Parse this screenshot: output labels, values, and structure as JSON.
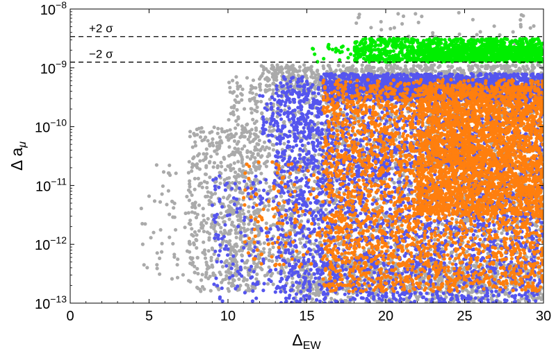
{
  "chart_data": {
    "type": "scatter",
    "title": "",
    "xlabel": {
      "main": "Δ",
      "sub": "EW"
    },
    "ylabel": {
      "main": "Δ a",
      "sub": "μ"
    },
    "xlim": [
      0,
      30
    ],
    "ylim": [
      1e-13,
      1e-08
    ],
    "yscale": "log",
    "x_ticks": [
      {
        "value": 0,
        "label": "0"
      },
      {
        "value": 5,
        "label": "5"
      },
      {
        "value": 10,
        "label": "10"
      },
      {
        "value": 15,
        "label": "15"
      },
      {
        "value": 20,
        "label": "20"
      },
      {
        "value": 25,
        "label": "25"
      },
      {
        "value": 30,
        "label": "30"
      }
    ],
    "y_ticks": [
      {
        "exp": -13,
        "base": "10",
        "sup": "−13"
      },
      {
        "exp": -12,
        "base": "10",
        "sup": "−12"
      },
      {
        "exp": -11,
        "base": "10",
        "sup": "−11"
      },
      {
        "exp": -10,
        "base": "10",
        "sup": "−10"
      },
      {
        "exp": -9,
        "base": "10",
        "sup": "−9"
      },
      {
        "exp": -8,
        "base": "10",
        "sup": "−8"
      }
    ],
    "reference_lines": [
      {
        "y": 3.4e-09,
        "label": "+2 σ",
        "style": "dashed",
        "color": "#000000"
      },
      {
        "y": 1.25e-09,
        "label": "−2 σ",
        "style": "dashed",
        "color": "#000000"
      }
    ],
    "grid": false,
    "legend": "none",
    "series": [
      {
        "color": "#aaaaaa",
        "regions": [
          {
            "x": [
              4.2,
              8
            ],
            "logy": [
              -12.6,
              -10.6
            ],
            "n": 60
          },
          {
            "x": [
              7.5,
              12
            ],
            "logy": [
              -12.8,
              -10.0
            ],
            "n": 500
          },
          {
            "x": [
              10,
              30
            ],
            "logy": [
              -12.8,
              -9.15
            ],
            "n": 2400
          },
          {
            "x": [
              12,
              30
            ],
            "logy": [
              -9.4,
              -8.95
            ],
            "n": 900
          },
          {
            "x": [
              14,
              30
            ],
            "logy": [
              -13.0,
              -12.3
            ],
            "n": 700
          },
          {
            "x": [
              18,
              30
            ],
            "logy": [
              -8.9,
              -8.05
            ],
            "n": 60
          }
        ]
      },
      {
        "color": "#5555ee",
        "regions": [
          {
            "x": [
              9,
              13
            ],
            "logy": [
              -13.0,
              -10.8
            ],
            "n": 140
          },
          {
            "x": [
              13,
              30
            ],
            "logy": [
              -13.0,
              -9.15
            ],
            "n": 3200
          },
          {
            "x": [
              16,
              30
            ],
            "logy": [
              -9.55,
              -9.1
            ],
            "n": 1500
          },
          {
            "x": [
              12,
              16
            ],
            "logy": [
              -10.3,
              -9.4
            ],
            "n": 120
          }
        ]
      },
      {
        "color": "#ff7f0e",
        "regions": [
          {
            "x": [
              11,
              16
            ],
            "logy": [
              -12.4,
              -10.6
            ],
            "n": 120
          },
          {
            "x": [
              16,
              30
            ],
            "logy": [
              -12.8,
              -9.2
            ],
            "n": 3000
          },
          {
            "x": [
              22,
              30
            ],
            "logy": [
              -11.5,
              -9.3
            ],
            "n": 2200
          }
        ]
      },
      {
        "color": "#00ee00",
        "regions": [
          {
            "x": [
              15.3,
              30
            ],
            "logy": [
              -8.9,
              -8.6
            ],
            "n": 90
          },
          {
            "x": [
              18,
              30
            ],
            "logy": [
              -8.9,
              -8.5
            ],
            "n": 900
          },
          {
            "x": [
              22,
              30
            ],
            "logy": [
              -8.88,
              -8.65
            ],
            "n": 500
          }
        ]
      }
    ]
  }
}
